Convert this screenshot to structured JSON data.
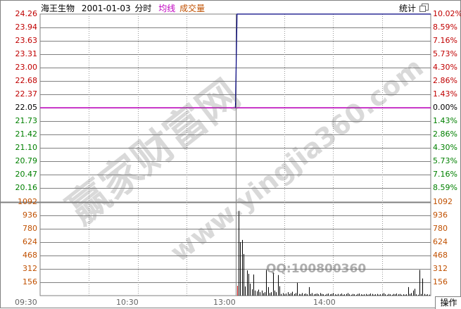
{
  "header": {
    "stock_name": "海王生物",
    "date": "2001-01-03",
    "mode": "分时",
    "avg_label": "均线",
    "volume_label": "成交量",
    "stats_button": "统计",
    "restore_icon": "restore-window-icon"
  },
  "price_axis": {
    "labels": [
      "24.26",
      "23.94",
      "23.63",
      "23.31",
      "23.00",
      "22.68",
      "22.37",
      "22.05",
      "21.73",
      "21.42",
      "21.10",
      "20.79",
      "20.47",
      "20.16"
    ],
    "pct_labels": [
      "10.02%",
      "8.59%",
      "7.16%",
      "5.73%",
      "4.30%",
      "2.86%",
      "1.43%",
      "0.00%",
      "1.43%",
      "2.86%",
      "4.30%",
      "5.73%",
      "7.16%",
      "8.59%"
    ]
  },
  "volume_axis": {
    "labels": [
      "1092",
      "936",
      "780",
      "624",
      "468",
      "312",
      "156"
    ]
  },
  "time_axis": {
    "labels": [
      "09:30",
      "10:30",
      "13:00",
      "14:00"
    ]
  },
  "operate_button": "操作",
  "watermark": {
    "text1": "赢家财富网",
    "text2": "www.yingjia360.com",
    "text3": "QQ:100800360"
  },
  "colors": {
    "up": "#c00000",
    "down": "#008000",
    "flat": "#000000",
    "avg": "#c000c0",
    "volume_text": "#c05000",
    "price_line": "#000080",
    "grid": "#808080"
  },
  "chart_data": {
    "type": "line",
    "prev_close": 22.05,
    "price_range": [
      20.16,
      24.26
    ],
    "price": [
      {
        "time": "13:00",
        "value": 22.05
      },
      {
        "time": "13:01",
        "value": 24.26
      },
      {
        "time": "15:00",
        "value": 24.26
      }
    ],
    "volume_range": [
      0,
      1092
    ],
    "volume_start": "13:00",
    "volume": [
      0,
      115,
      985,
      624,
      650,
      485,
      107,
      295,
      255,
      140,
      74,
      246,
      60,
      50,
      70,
      40,
      60,
      30,
      40,
      300,
      100,
      30,
      40,
      270,
      60,
      40,
      240,
      110,
      20,
      30,
      15,
      25,
      40,
      20,
      30,
      45,
      20,
      30,
      150,
      20,
      15,
      30,
      20,
      25,
      15,
      100,
      20,
      30,
      15,
      20,
      25,
      15,
      30,
      20,
      15,
      10,
      20,
      25,
      15,
      20,
      30,
      15,
      10,
      20,
      15,
      25,
      10,
      15,
      20,
      30,
      15,
      10,
      20,
      15,
      10,
      20,
      25,
      15,
      10,
      15,
      20,
      10,
      15,
      25,
      20,
      10,
      15,
      20,
      10,
      15,
      20,
      30,
      15,
      10,
      20,
      15,
      10,
      20,
      15,
      25,
      15,
      20,
      10,
      15,
      10,
      15,
      100,
      20,
      30,
      60,
      80,
      15,
      10,
      300,
      20,
      200,
      20,
      10,
      15,
      10
    ]
  }
}
